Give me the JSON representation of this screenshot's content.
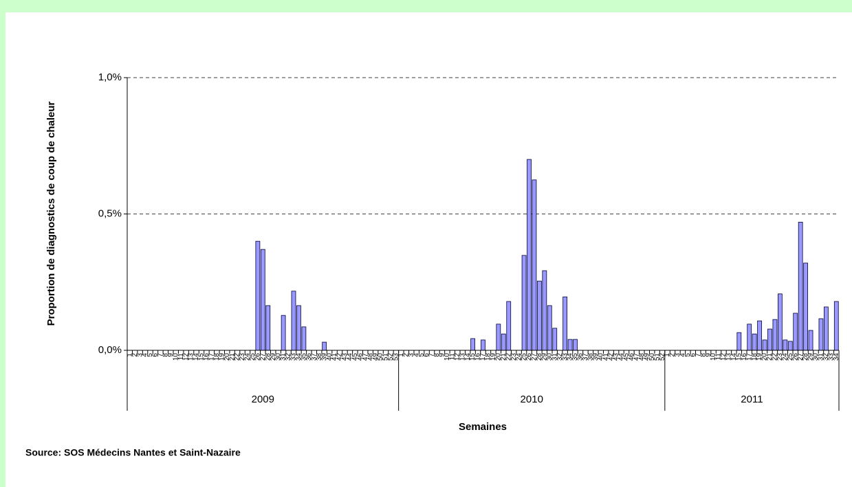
{
  "chart_data": {
    "type": "bar",
    "y_label": "Proportion de diagnostics de coup de chaleur",
    "x_label": "Semaines",
    "source": "Source: SOS Médecins Nantes et Saint-Nazaire",
    "groups": [
      "2009",
      "2010",
      "2011"
    ],
    "categories": [
      1,
      2,
      3,
      4,
      5,
      6,
      7,
      8,
      9,
      10,
      11,
      12,
      13,
      14,
      15,
      16,
      17,
      18,
      19,
      20,
      21,
      22,
      23,
      24,
      25,
      26,
      27,
      28,
      29,
      30,
      31,
      32,
      33,
      34,
      35,
      36,
      37,
      38,
      39,
      40,
      41,
      42,
      43,
      44,
      45,
      46,
      47,
      48,
      49,
      50,
      51,
      52,
      53,
      1,
      2,
      3,
      4,
      5,
      6,
      7,
      8,
      9,
      10,
      11,
      12,
      13,
      14,
      15,
      16,
      17,
      18,
      19,
      20,
      21,
      22,
      23,
      24,
      25,
      26,
      27,
      28,
      29,
      30,
      31,
      32,
      33,
      34,
      35,
      36,
      37,
      38,
      39,
      40,
      41,
      42,
      43,
      44,
      45,
      46,
      47,
      48,
      49,
      50,
      51,
      52,
      1,
      2,
      3,
      4,
      5,
      6,
      7,
      8,
      9,
      10,
      11,
      12,
      13,
      14,
      15,
      16,
      17,
      18,
      19,
      20,
      21,
      22,
      23,
      24,
      25,
      26,
      27,
      28,
      29,
      30,
      31,
      32,
      33,
      34
    ],
    "values": [
      0,
      0,
      0,
      0,
      0,
      0,
      0,
      0,
      0,
      0,
      0,
      0,
      0,
      0,
      0,
      0,
      0,
      0,
      0,
      0,
      0,
      0,
      0,
      0,
      0,
      0.4,
      0.37,
      0.164,
      0,
      0,
      0.128,
      0,
      0.217,
      0.164,
      0.086,
      0,
      0,
      0,
      0.03,
      0,
      0,
      0,
      0,
      0,
      0,
      0,
      0,
      0,
      0,
      0,
      0,
      0,
      0,
      0,
      0,
      0,
      0,
      0,
      0,
      0,
      0,
      0,
      0,
      0,
      0,
      0,
      0,
      0.043,
      0,
      0.038,
      0,
      0,
      0.096,
      0.06,
      0.179,
      0,
      0,
      0.348,
      0.7,
      0.625,
      0.254,
      0.292,
      0.164,
      0.081,
      0,
      0.196,
      0.04,
      0.04,
      0,
      0,
      0,
      0,
      0,
      0,
      0,
      0,
      0,
      0,
      0,
      0,
      0,
      0,
      0,
      0,
      0,
      0,
      0,
      0,
      0,
      0,
      0,
      0,
      0,
      0,
      0,
      0,
      0,
      0,
      0,
      0.065,
      0,
      0.096,
      0.06,
      0.108,
      0.038,
      0.078,
      0.113,
      0.207,
      0.038,
      0.033,
      0.136,
      0.47,
      0.32,
      0.073,
      0,
      0.116,
      0.159,
      0,
      0.179
    ],
    "color": "#9999ff",
    "ylim": [
      0,
      1.0
    ],
    "yticks": [
      {
        "value": 0,
        "label": "0,0%"
      },
      {
        "value": 0.5,
        "label": "0,5%"
      },
      {
        "value": 1.0,
        "label": "1,0%"
      }
    ],
    "grid": true
  }
}
